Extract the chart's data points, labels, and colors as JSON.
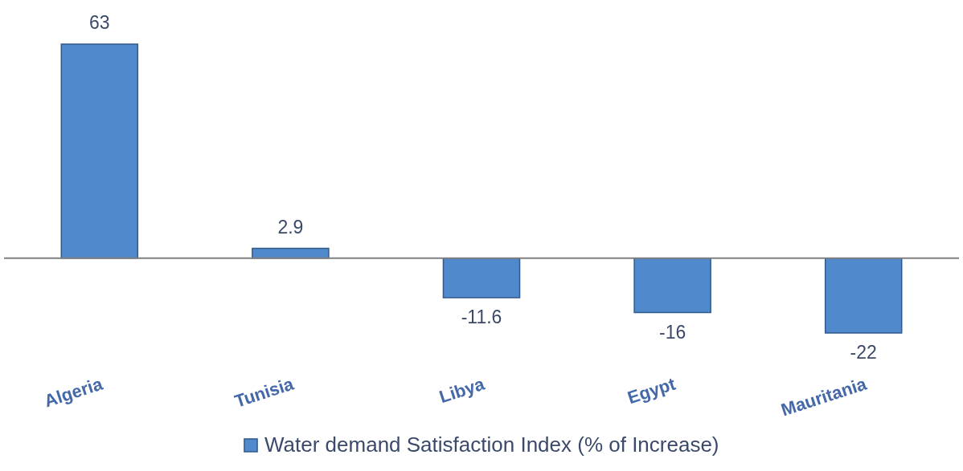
{
  "chart_data": {
    "type": "bar",
    "categories": [
      "Algeria",
      "Tunisia",
      "Libya",
      "Egypt",
      "Mauritania"
    ],
    "series": [
      {
        "name": "Water demand Satisfaction Index (% of Increase)",
        "color": "#5189cd",
        "values": [
          63,
          2.9,
          -11.6,
          -16,
          -22
        ]
      }
    ],
    "data_labels": true,
    "legend": "bottom",
    "tick_labels": "x"
  }
}
